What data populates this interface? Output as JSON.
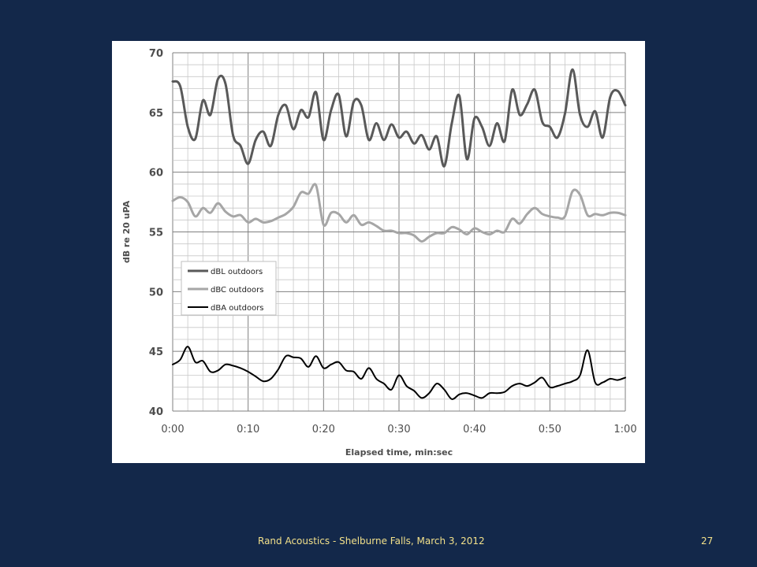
{
  "footer": {
    "text": "Rand Acoustics - Shelburne Falls, March 3, 2012",
    "page_number": "27"
  },
  "chart_data": {
    "type": "line",
    "title": "",
    "xlabel": "Elapsed time, min:sec",
    "ylabel": "dB re 20 uPA",
    "xlim": [
      0,
      60
    ],
    "ylim": [
      40,
      70
    ],
    "x_ticks": [
      0,
      10,
      20,
      30,
      40,
      50,
      60
    ],
    "x_tick_labels": [
      "0:00",
      "0:10",
      "0:20",
      "0:30",
      "0:40",
      "0:50",
      "1:00"
    ],
    "y_ticks": [
      40,
      45,
      50,
      55,
      60,
      65,
      70
    ],
    "y_tick_labels": [
      "40",
      "45",
      "50",
      "55",
      "60",
      "65",
      "70"
    ],
    "grid": true,
    "legend_position": "left-middle",
    "series": [
      {
        "name": "dBL outdoors",
        "color": "#595959",
        "x": [
          0,
          1,
          2,
          3,
          4,
          5,
          6,
          7,
          8,
          9,
          10,
          11,
          12,
          13,
          14,
          15,
          16,
          17,
          18,
          19,
          20,
          21,
          22,
          23,
          24,
          25,
          26,
          27,
          28,
          29,
          30,
          31,
          32,
          33,
          34,
          35,
          36,
          37,
          38,
          39,
          40,
          41,
          42,
          43,
          44,
          45,
          46,
          47,
          48,
          49,
          50,
          51,
          52,
          53,
          54,
          55,
          56,
          57,
          58,
          59,
          60
        ],
        "values": [
          67.6,
          67.2,
          63.8,
          62.8,
          66.0,
          64.8,
          67.8,
          67.4,
          63.1,
          62.2,
          60.7,
          62.7,
          63.4,
          62.2,
          64.8,
          65.6,
          63.6,
          65.2,
          64.6,
          66.7,
          62.7,
          65.2,
          66.5,
          63.0,
          65.9,
          65.6,
          62.7,
          64.1,
          62.7,
          64.0,
          62.9,
          63.4,
          62.4,
          63.1,
          61.9,
          63.0,
          60.5,
          64.1,
          66.4,
          61.1,
          64.5,
          63.8,
          62.2,
          64.1,
          62.6,
          66.9,
          64.8,
          65.7,
          66.9,
          64.2,
          63.8,
          62.9,
          64.9,
          68.6,
          64.8,
          63.8,
          65.1,
          62.9,
          66.3,
          66.8,
          65.6
        ]
      },
      {
        "name": "dBC outdoors",
        "color": "#a6a6a6",
        "x": [
          0,
          1,
          2,
          3,
          4,
          5,
          6,
          7,
          8,
          9,
          10,
          11,
          12,
          13,
          14,
          15,
          16,
          17,
          18,
          19,
          20,
          21,
          22,
          23,
          24,
          25,
          26,
          27,
          28,
          29,
          30,
          31,
          32,
          33,
          34,
          35,
          36,
          37,
          38,
          39,
          40,
          41,
          42,
          43,
          44,
          45,
          46,
          47,
          48,
          49,
          50,
          51,
          52,
          53,
          54,
          55,
          56,
          57,
          58,
          59,
          60
        ],
        "values": [
          57.6,
          57.9,
          57.5,
          56.3,
          57.0,
          56.6,
          57.4,
          56.7,
          56.3,
          56.4,
          55.8,
          56.1,
          55.8,
          55.9,
          56.2,
          56.5,
          57.1,
          58.3,
          58.2,
          58.9,
          55.6,
          56.6,
          56.5,
          55.8,
          56.4,
          55.6,
          55.8,
          55.5,
          55.1,
          55.1,
          54.9,
          54.9,
          54.7,
          54.2,
          54.6,
          54.9,
          54.9,
          55.4,
          55.2,
          54.8,
          55.3,
          55.0,
          54.8,
          55.1,
          55.0,
          56.1,
          55.7,
          56.5,
          57.0,
          56.5,
          56.3,
          56.2,
          56.3,
          58.4,
          58.1,
          56.4,
          56.5,
          56.4,
          56.6,
          56.6,
          56.4
        ]
      },
      {
        "name": "dBA outdoors",
        "color": "#000000",
        "x": [
          0,
          1,
          2,
          3,
          4,
          5,
          6,
          7,
          8,
          9,
          10,
          11,
          12,
          13,
          14,
          15,
          16,
          17,
          18,
          19,
          20,
          21,
          22,
          23,
          24,
          25,
          26,
          27,
          28,
          29,
          30,
          31,
          32,
          33,
          34,
          35,
          36,
          37,
          38,
          39,
          40,
          41,
          42,
          43,
          44,
          45,
          46,
          47,
          48,
          49,
          50,
          51,
          52,
          53,
          54,
          55,
          56,
          57,
          58,
          59,
          60
        ],
        "values": [
          43.9,
          44.3,
          45.4,
          44.1,
          44.2,
          43.3,
          43.4,
          43.9,
          43.8,
          43.6,
          43.3,
          42.9,
          42.5,
          42.7,
          43.5,
          44.6,
          44.5,
          44.4,
          43.7,
          44.6,
          43.6,
          43.9,
          44.1,
          43.4,
          43.3,
          42.7,
          43.6,
          42.7,
          42.3,
          41.8,
          43.0,
          42.1,
          41.7,
          41.1,
          41.5,
          42.3,
          41.8,
          41.0,
          41.4,
          41.5,
          41.3,
          41.1,
          41.5,
          41.5,
          41.6,
          42.1,
          42.3,
          42.1,
          42.4,
          42.8,
          42.0,
          42.1,
          42.3,
          42.5,
          43.0,
          45.1,
          42.4,
          42.4,
          42.7,
          42.6,
          42.8
        ]
      }
    ]
  }
}
